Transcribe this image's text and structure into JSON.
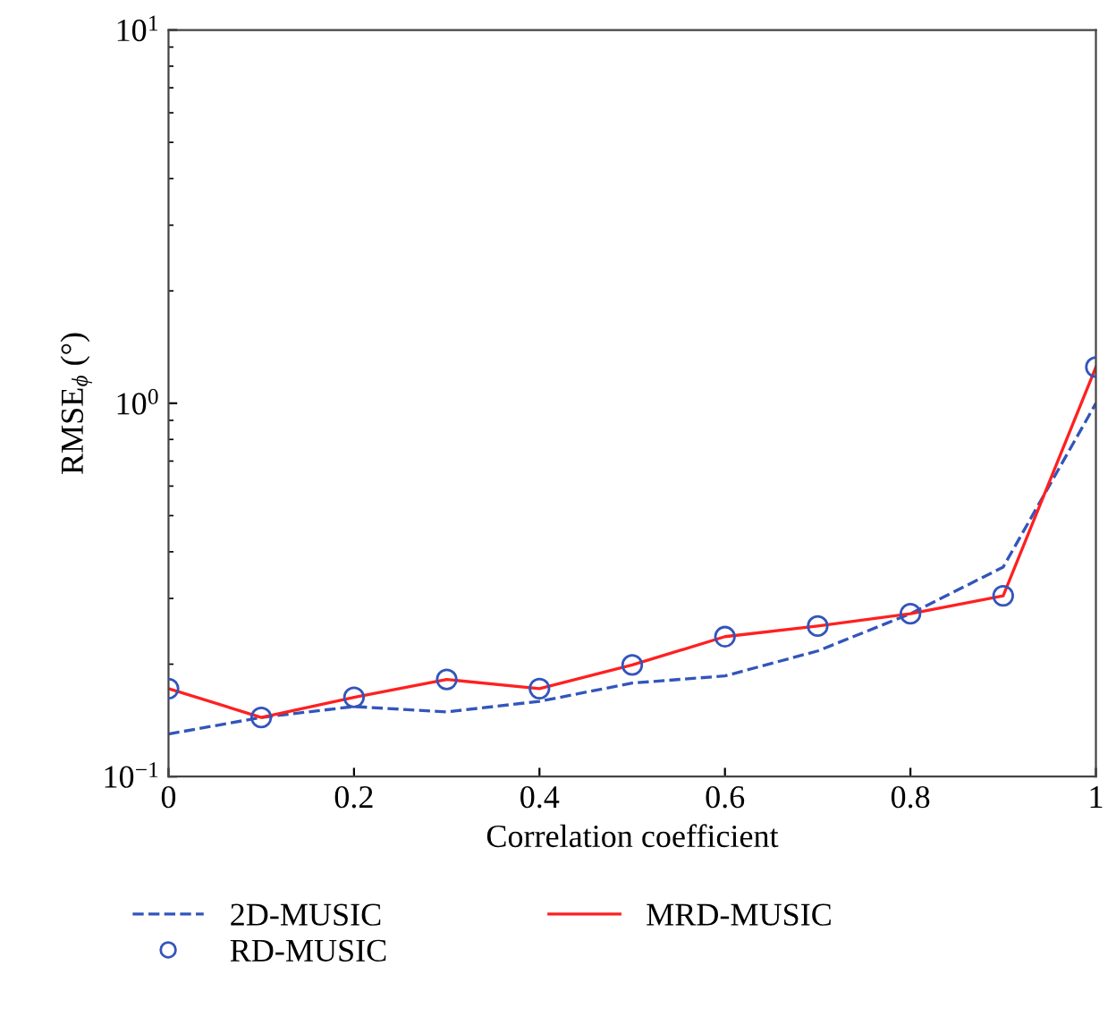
{
  "chart_data": {
    "type": "line",
    "xlabel": "Correlation coefficient",
    "ylabel": "RMSE$_{ϕ}$ (°)",
    "log": "y",
    "x": [
      0,
      0.1,
      0.2,
      0.3,
      0.4,
      0.5,
      0.6,
      0.7,
      0.8,
      0.9,
      1
    ],
    "series": [
      {
        "name": "2D-MUSIC",
        "line_style": "dashed",
        "marker": "none",
        "color": "#3355bb",
        "values": [
          0.13,
          0.144,
          0.154,
          0.149,
          0.159,
          0.178,
          0.186,
          0.217,
          0.273,
          0.364,
          1.0
        ]
      },
      {
        "name": "RD-MUSIC",
        "type": "scatter",
        "marker": "circle",
        "color": "#3355bb",
        "values": [
          0.172,
          0.144,
          0.163,
          0.182,
          0.172,
          0.199,
          0.237,
          0.253,
          0.273,
          0.305,
          1.25
        ]
      },
      {
        "name": "MRD-MUSIC",
        "line_style": "solid",
        "marker": "none",
        "color": "#ff2020",
        "values": [
          0.172,
          0.144,
          0.163,
          0.182,
          0.172,
          0.199,
          0.237,
          0.253,
          0.273,
          0.305,
          1.25
        ]
      }
    ],
    "xlim": [
      0,
      1
    ],
    "xticks": [
      0,
      0.2,
      0.4,
      0.6,
      0.8,
      1
    ],
    "ylim": [
      0.1,
      10
    ],
    "yticks": [
      {
        "value": 0.1,
        "label": "10$^{−1}$"
      },
      {
        "value": 1,
        "label": "10$^{0}$"
      },
      {
        "value": 10,
        "label": "10$^{1}$"
      }
    ],
    "grid": false,
    "legend": "bottom"
  }
}
